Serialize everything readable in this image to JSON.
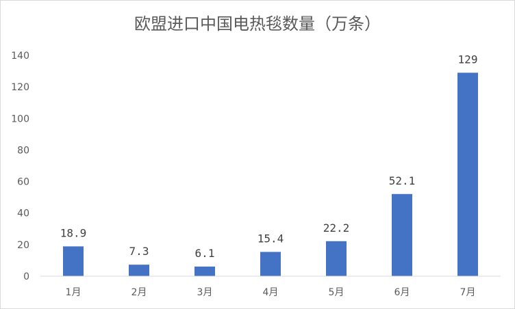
{
  "chart_data": {
    "type": "bar",
    "title": "欧盟进口中国电热毯数量（万条）",
    "categories": [
      "1月",
      "2月",
      "3月",
      "4月",
      "5月",
      "6月",
      "7月"
    ],
    "values": [
      18.9,
      7.3,
      6.1,
      15.4,
      22.2,
      52.1,
      129
    ],
    "data_labels": [
      "18.9",
      "7.3",
      "6.1",
      "15.4",
      "22.2",
      "52.1",
      "129"
    ],
    "ylim": [
      0,
      140
    ],
    "yticks": [
      0,
      20,
      40,
      60,
      80,
      100,
      120,
      140
    ],
    "grid": false,
    "bar_color": "#4472C4"
  }
}
